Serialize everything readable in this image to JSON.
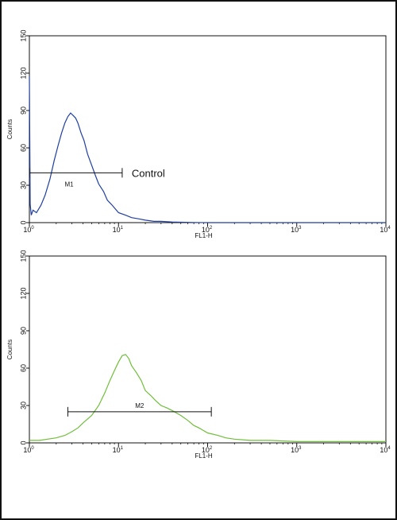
{
  "chart_data": [
    {
      "type": "line",
      "id": "top",
      "xlabel": "FL1-H",
      "ylabel": "Counts",
      "xscale": "log",
      "xlim": [
        1,
        10000
      ],
      "ylim": [
        0,
        150
      ],
      "x_ticks": [
        {
          "base": "10",
          "exp": "0"
        },
        {
          "base": "10",
          "exp": "1"
        },
        {
          "base": "10",
          "exp": "2"
        },
        {
          "base": "10",
          "exp": "3"
        },
        {
          "base": "10",
          "exp": "4"
        }
      ],
      "y_ticks": [
        "0",
        "30",
        "60",
        "90",
        "120",
        "150"
      ],
      "color": "#1f3fa0",
      "series": [
        {
          "x": [
            1.0,
            1.02,
            1.05,
            1.1,
            1.2,
            1.35,
            1.5,
            1.7,
            1.9,
            2.1,
            2.3,
            2.5,
            2.7,
            2.9,
            3.1,
            3.3,
            3.5,
            3.8,
            4.1,
            4.5,
            5.0,
            5.5,
            6.0,
            6.8,
            7.5,
            8.5,
            10,
            12,
            14,
            17,
            20,
            25,
            30,
            40,
            50,
            70,
            100,
            1000,
            10000
          ],
          "y": [
            118,
            15,
            6,
            10,
            8,
            14,
            22,
            35,
            50,
            62,
            72,
            80,
            85,
            88,
            86,
            84,
            80,
            72,
            66,
            55,
            46,
            38,
            31,
            25,
            18,
            14,
            8,
            6,
            4,
            3,
            2,
            1,
            1,
            0.5,
            0.3,
            0.1,
            0,
            0,
            0
          ]
        }
      ],
      "markers": [
        {
          "label": "M1",
          "x_start": 1.0,
          "x_end": 11,
          "y": 40
        }
      ],
      "annotation": "Control"
    },
    {
      "type": "line",
      "id": "bottom",
      "xlabel": "FL1-H",
      "ylabel": "Counts",
      "xscale": "log",
      "xlim": [
        1,
        10000
      ],
      "ylim": [
        0,
        150
      ],
      "x_ticks": [
        {
          "base": "10",
          "exp": "0"
        },
        {
          "base": "10",
          "exp": "1"
        },
        {
          "base": "10",
          "exp": "2"
        },
        {
          "base": "10",
          "exp": "3"
        },
        {
          "base": "10",
          "exp": "4"
        }
      ],
      "y_ticks": [
        "0",
        "30",
        "60",
        "90",
        "120",
        "150"
      ],
      "color": "#6fbf3a",
      "series": [
        {
          "x": [
            1.0,
            1.3,
            1.6,
            2.0,
            2.5,
            3.0,
            3.5,
            4.0,
            5.0,
            6.0,
            7.0,
            8.0,
            9.0,
            10,
            11,
            12,
            13,
            14,
            16,
            18,
            20,
            23,
            26,
            30,
            35,
            40,
            50,
            60,
            70,
            80,
            100,
            130,
            160,
            200,
            300,
            500,
            1000,
            3000,
            10000
          ],
          "y": [
            2,
            2,
            3,
            4,
            6,
            9,
            12,
            16,
            22,
            30,
            40,
            50,
            58,
            65,
            70,
            71,
            68,
            62,
            56,
            50,
            42,
            38,
            34,
            30,
            28,
            26,
            22,
            18,
            14,
            12,
            8,
            6,
            4,
            3,
            2,
            2,
            1,
            1,
            1
          ]
        }
      ],
      "markers": [
        {
          "label": "M2",
          "x_start": 2.7,
          "x_end": 110,
          "y": 25
        }
      ],
      "annotation": ""
    }
  ]
}
